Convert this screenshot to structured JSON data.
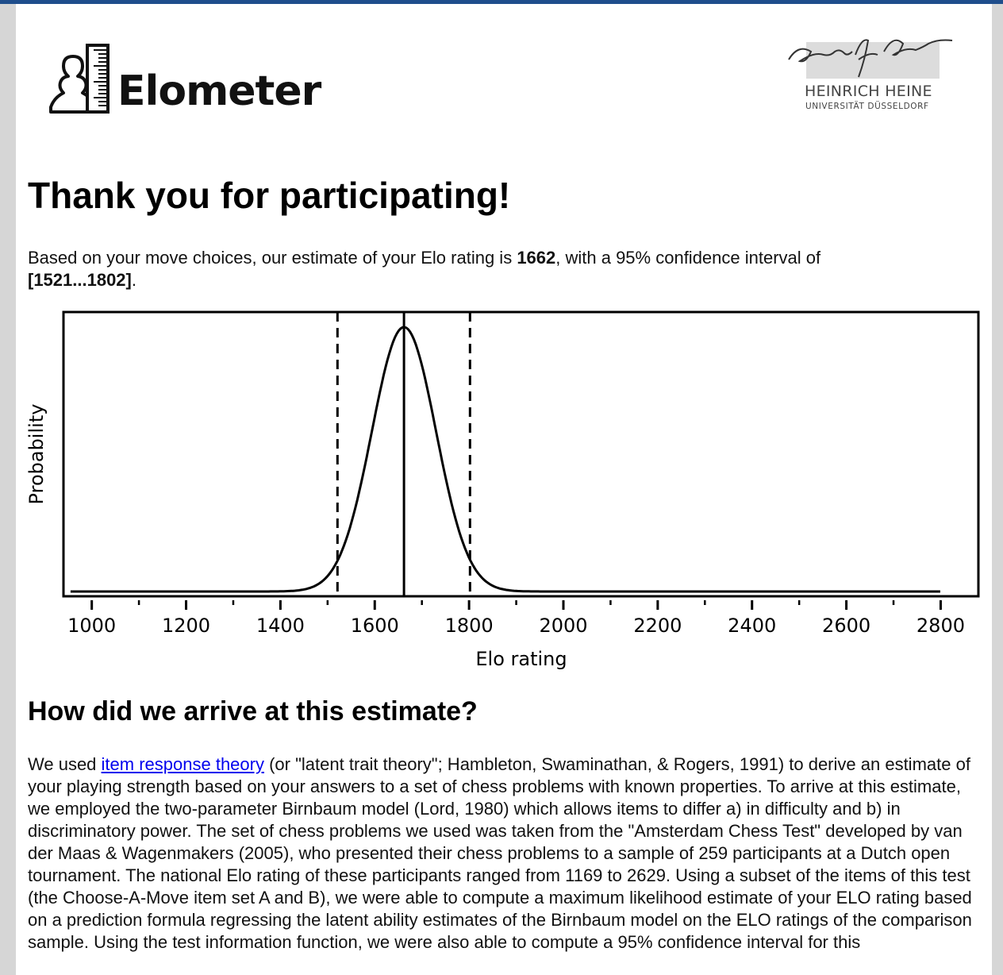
{
  "header": {
    "brand": "Elometer",
    "university": {
      "name": "HEINRICH HEINE",
      "subname": "UNIVERSITÄT DÜSSELDORF"
    }
  },
  "title": "Thank you for participating!",
  "summary": {
    "prefix": "Based on your move choices, our estimate of your Elo rating is ",
    "estimate": "1662",
    "middle": ", with a 95% confidence interval of ",
    "interval": "[1521...1802]",
    "suffix": "."
  },
  "chart_data": {
    "type": "line",
    "xlabel": "Elo rating",
    "ylabel": "Probability",
    "xlim": [
      940,
      2880
    ],
    "ticks": [
      1000,
      1200,
      1400,
      1600,
      1800,
      2000,
      2200,
      2400,
      2600,
      2800
    ],
    "estimate": 1662,
    "ci_low": 1521,
    "ci_high": 1802,
    "curve": {
      "mean": 1662,
      "sd": 68,
      "x_start": 955,
      "x_end": 2800
    },
    "grid": false,
    "legend": "none"
  },
  "section": {
    "heading": "How did we arrive at this estimate?",
    "paragraph_before_link": "We used ",
    "link_text": "item response theory",
    "paragraph_after_link": " (or \"latent trait theory\"; Hambleton, Swaminathan, & Rogers, 1991) to derive an estimate of your playing strength based on your answers to a set of chess problems with known properties. To arrive at this estimate, we employed the two-parameter Birnbaum model (Lord, 1980) which allows items to differ a) in difficulty and b) in discriminatory power. The set of chess problems we used was taken from the \"Amsterdam Chess Test\" developed by van der Maas & Wagenmakers (2005), who presented their chess problems to a sample of 259 participants at a Dutch open tournament. The national Elo rating of these participants ranged from 1169 to 2629. Using a subset of the items of this test (the Choose-A-Move item set A and B), we were able to compute a maximum likelihood estimate of your ELO rating based on a prediction formula regressing the latent ability estimates of the Birnbaum model on the ELO ratings of the comparison sample. Using the test information function, we were also able to compute a 95% confidence interval for this"
  },
  "colors": {
    "top_bar": "#1f4e8c",
    "link": "#0000ee",
    "background": "#d6d6d6"
  }
}
